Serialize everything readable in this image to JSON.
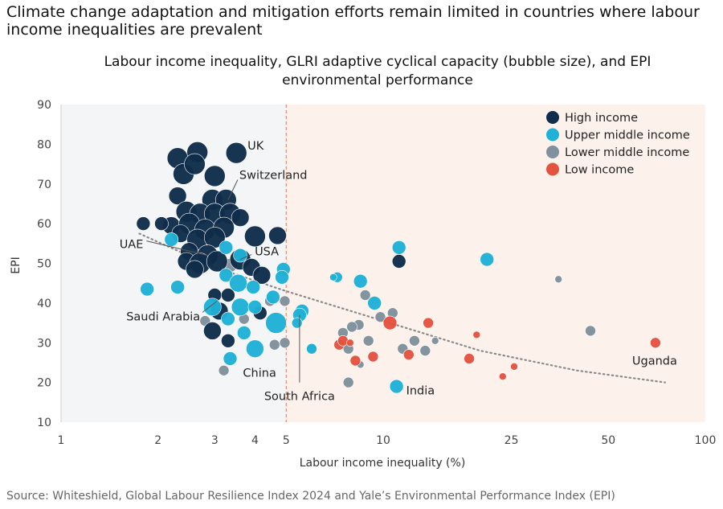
{
  "headline": "Climate change adaptation and mitigation efforts remain limited in countries where labour income inequalities are prevalent",
  "source": "Source: Whiteshield, Global Labour Resilience Index 2024 and Yale’s Environmental Performance Index (EPI)",
  "colors": {
    "High income": "#0f2d4a",
    "Upper middle income": "#1fb1d6",
    "Lower middle income": "#7f919c",
    "Low income": "#e4533f",
    "shade_left": "#f4f5f7",
    "shade_right": "#fdf1ec",
    "divider": "#e88a6a",
    "trend": "#8a8a8a"
  },
  "chart_data": {
    "type": "scatter",
    "title": "Labour income inequality, GLRI adaptive cyclical capacity (bubble size), and EPI environmental performance",
    "xlabel": "Labour income inequality (%)",
    "ylabel": "EPI",
    "xscale": "log",
    "xlim": [
      1,
      100
    ],
    "ylim": [
      10,
      90
    ],
    "xticks": [
      1,
      2,
      3,
      4,
      5,
      10,
      25,
      50,
      100
    ],
    "yticks": [
      10,
      20,
      30,
      40,
      50,
      60,
      70,
      80,
      90
    ],
    "shaded_threshold_x": 5,
    "legend_position": "top-right",
    "legend": [
      "High income",
      "Upper middle income",
      "Lower middle income",
      "Low income"
    ],
    "trendline": {
      "style": "dotted",
      "points": [
        [
          1.75,
          57.5
        ],
        [
          3,
          49
        ],
        [
          5,
          43
        ],
        [
          10,
          35.5
        ],
        [
          20,
          28
        ],
        [
          40,
          23
        ],
        [
          75,
          20
        ]
      ]
    },
    "series": [
      {
        "name": "High income",
        "points": [
          {
            "x": 2.3,
            "y": 76.5,
            "size": 5
          },
          {
            "x": 2.65,
            "y": 78,
            "size": 5
          },
          {
            "x": 3.5,
            "y": 77.8,
            "size": 5
          },
          {
            "x": 2.4,
            "y": 72.5,
            "size": 5
          },
          {
            "x": 2.6,
            "y": 75,
            "size": 5
          },
          {
            "x": 3,
            "y": 72,
            "size": 5
          },
          {
            "x": 2.3,
            "y": 67,
            "size": 4
          },
          {
            "x": 2.95,
            "y": 66,
            "size": 5
          },
          {
            "x": 3.25,
            "y": 66,
            "size": 5
          },
          {
            "x": 2.45,
            "y": 63,
            "size": 5
          },
          {
            "x": 2.7,
            "y": 62.5,
            "size": 5
          },
          {
            "x": 3.0,
            "y": 62.5,
            "size": 5
          },
          {
            "x": 3.35,
            "y": 62.5,
            "size": 5
          },
          {
            "x": 3.6,
            "y": 61.5,
            "size": 4
          },
          {
            "x": 2.2,
            "y": 59.5,
            "size": 4
          },
          {
            "x": 2.5,
            "y": 60,
            "size": 5
          },
          {
            "x": 2.8,
            "y": 58.5,
            "size": 5
          },
          {
            "x": 3.2,
            "y": 59,
            "size": 5
          },
          {
            "x": 2.35,
            "y": 57.5,
            "size": 4
          },
          {
            "x": 2.65,
            "y": 56,
            "size": 5
          },
          {
            "x": 3.0,
            "y": 56.5,
            "size": 5
          },
          {
            "x": 1.8,
            "y": 60,
            "size": 3
          },
          {
            "x": 2.05,
            "y": 60,
            "size": 3
          },
          {
            "x": 4.0,
            "y": 56.8,
            "size": 5
          },
          {
            "x": 4.7,
            "y": 57,
            "size": 4
          },
          {
            "x": 2.5,
            "y": 53,
            "size": 4
          },
          {
            "x": 2.85,
            "y": 52,
            "size": 5
          },
          {
            "x": 2.45,
            "y": 50.5,
            "size": 4
          },
          {
            "x": 2.7,
            "y": 50,
            "size": 5
          },
          {
            "x": 3.05,
            "y": 50.5,
            "size": 5
          },
          {
            "x": 2.6,
            "y": 48.5,
            "size": 4
          },
          {
            "x": 3.6,
            "y": 51,
            "size": 5
          },
          {
            "x": 3.9,
            "y": 49,
            "size": 4
          },
          {
            "x": 4.2,
            "y": 47,
            "size": 4
          },
          {
            "x": 3.0,
            "y": 42,
            "size": 3
          },
          {
            "x": 3.3,
            "y": 42,
            "size": 3
          },
          {
            "x": 3.1,
            "y": 38,
            "size": 4
          },
          {
            "x": 2.95,
            "y": 33,
            "size": 4
          },
          {
            "x": 3.3,
            "y": 30.5,
            "size": 3
          },
          {
            "x": 4.15,
            "y": 37.5,
            "size": 3
          },
          {
            "x": 11.2,
            "y": 50.5,
            "size": 3
          }
        ]
      },
      {
        "name": "Upper middle income",
        "points": [
          {
            "x": 2.2,
            "y": 56,
            "size": 3
          },
          {
            "x": 3.25,
            "y": 54,
            "size": 3
          },
          {
            "x": 3.6,
            "y": 52,
            "size": 3
          },
          {
            "x": 3.25,
            "y": 47,
            "size": 3
          },
          {
            "x": 3.55,
            "y": 45,
            "size": 4
          },
          {
            "x": 3.95,
            "y": 44,
            "size": 3
          },
          {
            "x": 1.85,
            "y": 43.5,
            "size": 3
          },
          {
            "x": 2.3,
            "y": 44,
            "size": 3
          },
          {
            "x": 4.55,
            "y": 41.5,
            "size": 3
          },
          {
            "x": 2.95,
            "y": 39,
            "size": 4
          },
          {
            "x": 3.6,
            "y": 39,
            "size": 4
          },
          {
            "x": 4.0,
            "y": 39,
            "size": 3
          },
          {
            "x": 3.3,
            "y": 36,
            "size": 3
          },
          {
            "x": 4.65,
            "y": 35,
            "size": 5
          },
          {
            "x": 3.7,
            "y": 32.5,
            "size": 3
          },
          {
            "x": 3.35,
            "y": 26,
            "size": 3
          },
          {
            "x": 4.0,
            "y": 28.5,
            "size": 4
          },
          {
            "x": 4.9,
            "y": 48.5,
            "size": 3
          },
          {
            "x": 4.85,
            "y": 46.5,
            "size": 3
          },
          {
            "x": 5.6,
            "y": 38,
            "size": 3
          },
          {
            "x": 5.5,
            "y": 37,
            "size": 3
          },
          {
            "x": 5.4,
            "y": 35,
            "size": 2
          },
          {
            "x": 6.0,
            "y": 28.5,
            "size": 2
          },
          {
            "x": 7.2,
            "y": 46.5,
            "size": 2
          },
          {
            "x": 7.0,
            "y": 46.5,
            "size": 1
          },
          {
            "x": 8.5,
            "y": 45.5,
            "size": 3
          },
          {
            "x": 9.4,
            "y": 40,
            "size": 3
          },
          {
            "x": 11.2,
            "y": 54,
            "size": 3
          },
          {
            "x": 21,
            "y": 51,
            "size": 3
          },
          {
            "x": 11.0,
            "y": 19,
            "size": 3
          }
        ]
      },
      {
        "name": "Lower middle income",
        "points": [
          {
            "x": 3.35,
            "y": 49.5,
            "size": 3
          },
          {
            "x": 2.8,
            "y": 35.5,
            "size": 2
          },
          {
            "x": 3.2,
            "y": 23,
            "size": 2
          },
          {
            "x": 3.7,
            "y": 36,
            "size": 2
          },
          {
            "x": 4.45,
            "y": 40.5,
            "size": 2
          },
          {
            "x": 4.6,
            "y": 29.5,
            "size": 2
          },
          {
            "x": 4.95,
            "y": 40.5,
            "size": 2
          },
          {
            "x": 4.95,
            "y": 30,
            "size": 2
          },
          {
            "x": 6.0,
            "y": 28.5,
            "size": 2
          },
          {
            "x": 7.5,
            "y": 32.5,
            "size": 2
          },
          {
            "x": 8.4,
            "y": 34.5,
            "size": 2
          },
          {
            "x": 8.0,
            "y": 34,
            "size": 2
          },
          {
            "x": 8.8,
            "y": 42,
            "size": 2
          },
          {
            "x": 9.8,
            "y": 36.5,
            "size": 2
          },
          {
            "x": 10.7,
            "y": 37.5,
            "size": 2
          },
          {
            "x": 7.8,
            "y": 28.5,
            "size": 2
          },
          {
            "x": 9.0,
            "y": 30.5,
            "size": 2
          },
          {
            "x": 11.5,
            "y": 28.5,
            "size": 2
          },
          {
            "x": 12.5,
            "y": 30.5,
            "size": 2
          },
          {
            "x": 13.5,
            "y": 28,
            "size": 2
          },
          {
            "x": 14.5,
            "y": 30.5,
            "size": 1
          },
          {
            "x": 8.5,
            "y": 24.5,
            "size": 1
          },
          {
            "x": 7.8,
            "y": 20,
            "size": 2
          },
          {
            "x": 35,
            "y": 46,
            "size": 1
          },
          {
            "x": 44,
            "y": 33,
            "size": 2
          }
        ]
      },
      {
        "name": "Low income",
        "points": [
          {
            "x": 7.3,
            "y": 29.5,
            "size": 2
          },
          {
            "x": 7.5,
            "y": 30.5,
            "size": 2
          },
          {
            "x": 7.9,
            "y": 30,
            "size": 1
          },
          {
            "x": 8.2,
            "y": 25.5,
            "size": 2
          },
          {
            "x": 9.3,
            "y": 26.5,
            "size": 2
          },
          {
            "x": 10.5,
            "y": 35,
            "size": 3
          },
          {
            "x": 12.0,
            "y": 27,
            "size": 2
          },
          {
            "x": 13.8,
            "y": 35,
            "size": 2
          },
          {
            "x": 18.5,
            "y": 26,
            "size": 2
          },
          {
            "x": 19.5,
            "y": 32,
            "size": 1
          },
          {
            "x": 23.5,
            "y": 21.5,
            "size": 1
          },
          {
            "x": 25.5,
            "y": 24,
            "size": 1
          },
          {
            "x": 70,
            "y": 30,
            "size": 2
          }
        ]
      }
    ],
    "annotations": [
      {
        "label": "UK",
        "x": 3.5,
        "y": 77.8
      },
      {
        "label": "Switzerland",
        "x": 3.3,
        "y": 66
      },
      {
        "label": "UAE",
        "x": 2.85,
        "y": 52
      },
      {
        "label": "USA",
        "x": 3.6,
        "y": 51
      },
      {
        "label": "Saudi Arabia",
        "x": 3.05,
        "y": 40.5
      },
      {
        "label": "China",
        "x": 4.0,
        "y": 28.5
      },
      {
        "label": "South Africa",
        "x": 5.5,
        "y": 37
      },
      {
        "label": "India",
        "x": 11.0,
        "y": 19
      },
      {
        "label": "Uganda",
        "x": 70,
        "y": 30
      }
    ]
  }
}
